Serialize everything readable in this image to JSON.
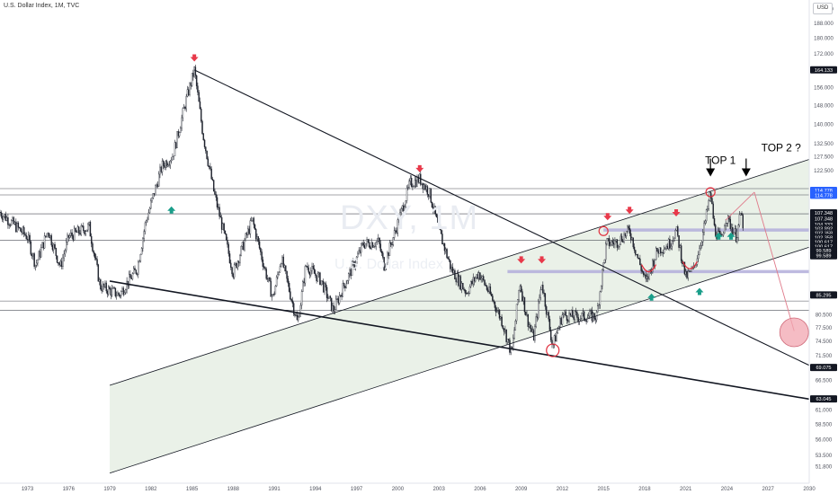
{
  "header": {
    "title": "U.S. Dollar Index, 1M, TVC"
  },
  "watermark": {
    "symbol": "DXY, 1M",
    "name": "U.S. Dollar Index"
  },
  "currency_button": "USD",
  "colors": {
    "up_candle": "#26a69a",
    "down_candle": "#ef5350",
    "candle_body": "#1e222d",
    "channel_fill": "#e6efe4",
    "support_band": "#b3aedb",
    "arrow_down": "#e8394a",
    "arrow_up": "#1a9e8a",
    "target_circle": "#f2a6b0"
  },
  "chart_data": {
    "type": "candlestick",
    "title": "U.S. Dollar Index, 1M, TVC",
    "x_axis": {
      "ticks": [
        "1973",
        "1976",
        "1979",
        "1982",
        "1985",
        "1988",
        "1991",
        "1994",
        "1997",
        "2000",
        "2003",
        "2006",
        "2009",
        "2012",
        "2015",
        "2018",
        "2021",
        "2024",
        "2027",
        "2030"
      ]
    },
    "y_axis": {
      "scale": "log",
      "ylim": [
        50.5,
        198
      ],
      "ticks": [
        "196.000",
        "188.000",
        "180.000",
        "172.000",
        "164.133",
        "156.000",
        "148.000",
        "140.000",
        "132.500",
        "127.500",
        "122.500",
        "114.778",
        "114.778",
        "107.348",
        "107.348",
        "104.333",
        "103.892",
        "102.358",
        "102.358",
        "100.617",
        "100.617",
        "99.589",
        "99.589",
        "85.295",
        "80.500",
        "77.500",
        "74.500",
        "71.500",
        "69.075",
        "66.500",
        "63.045",
        "61.000",
        "58.500",
        "56.000",
        "53.500",
        "51.800"
      ],
      "highlighted_labels": [
        {
          "label": "164.133",
          "value": 164.133
        },
        {
          "label": "114.778",
          "value": 115.6
        },
        {
          "label": "114.778",
          "value": 114.0
        },
        {
          "label": "107.348",
          "value": 108.3
        },
        {
          "label": "107.348",
          "value": 106.5
        },
        {
          "label": "104.333",
          "value": 104.7
        },
        {
          "label": "103.892",
          "value": 103.4
        },
        {
          "label": "102.358",
          "value": 102.1
        },
        {
          "label": "102.358",
          "value": 100.8
        },
        {
          "label": "100.617",
          "value": 99.5
        },
        {
          "label": "100.617",
          "value": 98.2
        },
        {
          "label": "99.589",
          "value": 97.0
        },
        {
          "label": "99.589",
          "value": 95.6
        },
        {
          "label": "85.295",
          "value": 85.295
        },
        {
          "label": "69.075",
          "value": 69.075
        },
        {
          "label": "63.045",
          "value": 63.045
        }
      ],
      "countdown_label": "12d 12h"
    },
    "price_path": [
      [
        1971.0,
        108.5
      ],
      [
        1973.0,
        101
      ],
      [
        1973.6,
        93
      ],
      [
        1974.5,
        103
      ],
      [
        1975.4,
        92.5
      ],
      [
        1976.0,
        101
      ],
      [
        1977.5,
        104
      ],
      [
        1978.3,
        87.5
      ],
      [
        1979.7,
        85.3
      ],
      [
        1980.2,
        88
      ],
      [
        1981.0,
        92
      ],
      [
        1981.6,
        105
      ],
      [
        1982.8,
        124
      ],
      [
        1983.6,
        128
      ],
      [
        1984.6,
        151
      ],
      [
        1985.17,
        164.1
      ],
      [
        1985.8,
        136
      ],
      [
        1986.6,
        115
      ],
      [
        1987.5,
        99
      ],
      [
        1988.0,
        91
      ],
      [
        1989.4,
        106
      ],
      [
        1990.3,
        92
      ],
      [
        1990.9,
        84.5
      ],
      [
        1991.5,
        95
      ],
      [
        1992.7,
        78.5
      ],
      [
        1993.3,
        93
      ],
      [
        1994.4,
        89
      ],
      [
        1995.3,
        81.5
      ],
      [
        1996.0,
        87
      ],
      [
        1997.5,
        99
      ],
      [
        1998.6,
        99.5
      ],
      [
        1999.0,
        93
      ],
      [
        2000.0,
        105
      ],
      [
        2000.9,
        118
      ],
      [
        2001.6,
        119.5
      ],
      [
        2002.3,
        115
      ],
      [
        2003.0,
        103
      ],
      [
        2003.9,
        92
      ],
      [
        2005.0,
        86
      ],
      [
        2005.9,
        91
      ],
      [
        2006.8,
        85
      ],
      [
        2007.6,
        79
      ],
      [
        2008.3,
        71.8
      ],
      [
        2008.9,
        88.5
      ],
      [
        2009.4,
        80
      ],
      [
        2009.9,
        75.2
      ],
      [
        2010.5,
        88.5
      ],
      [
        2011.3,
        73.5
      ],
      [
        2012.0,
        80.5
      ],
      [
        2013.0,
        80
      ],
      [
        2014.5,
        80.2
      ],
      [
        2015.2,
        99
      ],
      [
        2016.0,
        99.5
      ],
      [
        2016.9,
        103
      ],
      [
        2017.5,
        95
      ],
      [
        2018.1,
        88.4
      ],
      [
        2018.9,
        97
      ],
      [
        2019.8,
        99
      ],
      [
        2020.3,
        103
      ],
      [
        2021.0,
        89.8
      ],
      [
        2021.6,
        92
      ],
      [
        2022.3,
        103
      ],
      [
        2022.8,
        114.8
      ],
      [
        2023.1,
        103
      ],
      [
        2023.6,
        100
      ],
      [
        2023.9,
        107
      ],
      [
        2024.3,
        104.3
      ],
      [
        2024.7,
        101
      ],
      [
        2025.0,
        108
      ],
      [
        2025.2,
        104.3
      ]
    ],
    "trend_lines": [
      {
        "from": [
          1985.17,
          164.1
        ],
        "to": [
          2030.0,
          69.5
        ]
      },
      {
        "from": [
          1979.0,
          88.8
        ],
        "to": [
          2030.0,
          63.0
        ]
      }
    ],
    "channel": {
      "lower": {
        "from": [
          1979.0,
          50.8
        ],
        "to": [
          2030.0,
          98.0
        ]
      },
      "upper": {
        "from": [
          2009.0,
          80.0
        ],
        "to": [
          2030.0,
          126.5
        ]
      }
    },
    "horizontal_levels": [
      116.2,
      114.1,
      108.0,
      100.0,
      83.8,
      81.6
    ],
    "support_bands": [
      {
        "from": 2015.0,
        "to": 2030.0,
        "value": 103.0
      },
      {
        "from": 2008.0,
        "to": 2030.0,
        "value": 91.3
      }
    ],
    "markers": {
      "down_arrows": [
        [
          1985.17,
          169.5
        ],
        [
          2001.6,
          122.8
        ],
        [
          2009.0,
          94.2
        ],
        [
          2010.5,
          94.2
        ],
        [
          2015.3,
          106.8
        ],
        [
          2016.9,
          108.8
        ],
        [
          2020.3,
          108.0
        ]
      ],
      "up_arrows": [
        [
          1983.5,
          109.5
        ],
        [
          2018.5,
          85.0
        ],
        [
          2022.0,
          86.4
        ],
        [
          2023.4,
          101.5
        ],
        [
          2024.3,
          101.5
        ]
      ],
      "circles": [
        [
          2011.3,
          72.6
        ],
        [
          2015.0,
          102.7
        ],
        [
          2022.8,
          115.0
        ]
      ],
      "arcs": [
        [
          2018.3,
          92.2
        ],
        [
          2021.3,
          93.0
        ]
      ],
      "black_arrows": [
        [
          2022.8,
          121.0
        ],
        [
          2025.4,
          121.0
        ]
      ]
    },
    "projection": {
      "from": [
        2026.0,
        115.0
      ],
      "to": [
        2028.9,
        76.8
      ],
      "target": [
        2028.9,
        76.5
      ]
    },
    "annotations": [
      {
        "text": "TOP 1",
        "at": [
          2022.4,
          124.8
        ]
      },
      {
        "text": "TOP 2 ?",
        "at": [
          2026.5,
          129.5
        ]
      }
    ]
  }
}
